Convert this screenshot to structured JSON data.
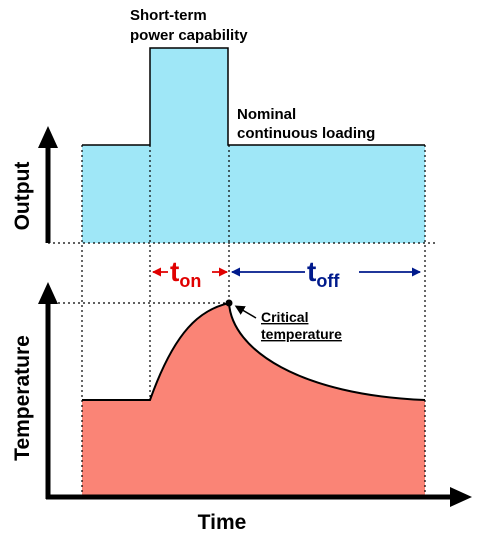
{
  "labels": {
    "peak": [
      "Short-term",
      "power capability"
    ],
    "nominal": [
      "Nominal",
      "continuous loading"
    ],
    "y_upper": "Output",
    "y_lower": "Temperature",
    "x_axis": "Time",
    "t_on": {
      "main": "t",
      "sub": "on"
    },
    "t_off": {
      "main": "t",
      "sub": "off"
    },
    "critical": [
      "Critical",
      "temperature"
    ]
  }
}
